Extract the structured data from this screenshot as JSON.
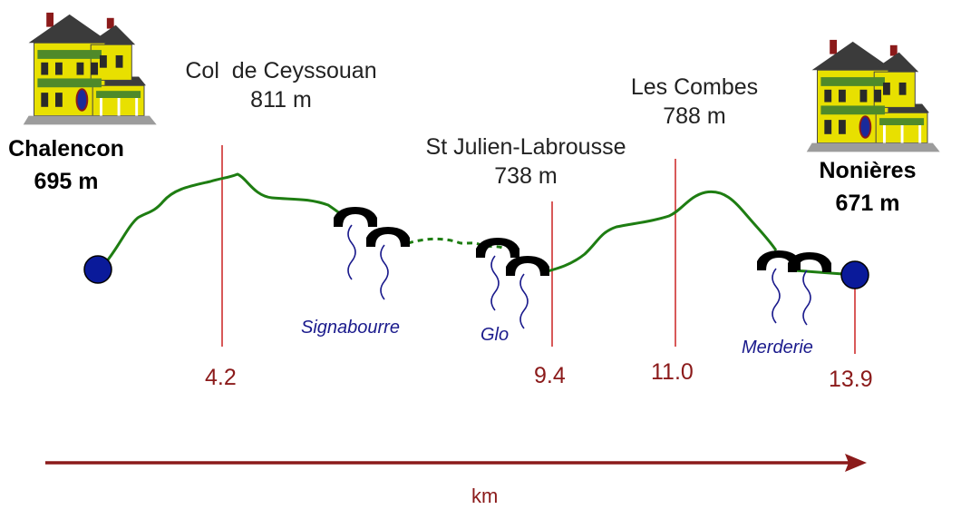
{
  "start": {
    "name": "Chalencon",
    "altitude": "695 m"
  },
  "end": {
    "name": "Nonières",
    "altitude": "671 m"
  },
  "passes": [
    {
      "name": "Col  de Ceyssouan",
      "altitude": "811 m",
      "km": "4.2"
    },
    {
      "name": "St Julien-Labrousse",
      "altitude": "738 m",
      "km": "9.4"
    },
    {
      "name": "Les Combes",
      "altitude": "788 m",
      "km": "11.0"
    }
  ],
  "end_km": "13.9",
  "streams": [
    "Signabourre",
    "Glo",
    "Merderie"
  ],
  "axis": {
    "label": "km"
  },
  "colors": {
    "profile": "#1e7d12",
    "marker": "#cc2222",
    "axis": "#8b1a1a",
    "stream": "#1a1a8c",
    "endpoint": "#0a1a9a"
  },
  "icons": [
    "house-icon",
    "bridge-icon"
  ]
}
